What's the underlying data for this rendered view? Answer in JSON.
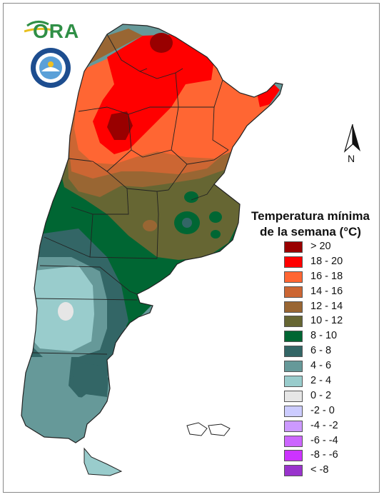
{
  "map": {
    "title_line1": "Temperatura mínima",
    "title_line2": "de la semana (°C)",
    "north_label": "N",
    "logos": {
      "ora_text": "ORA"
    },
    "legend": [
      {
        "label": "> 20",
        "color": "#990000"
      },
      {
        "label": "18 - 20",
        "color": "#ff0000"
      },
      {
        "label": "16 - 18",
        "color": "#ff6633"
      },
      {
        "label": "14 - 16",
        "color": "#cc6633"
      },
      {
        "label": "12 - 14",
        "color": "#996633"
      },
      {
        "label": "10 - 12",
        "color": "#666633"
      },
      {
        "label": "8 - 10",
        "color": "#006633"
      },
      {
        "label": "6 - 8",
        "color": "#336666"
      },
      {
        "label": "4 - 6",
        "color": "#669999"
      },
      {
        "label": "2 - 4",
        "color": "#99cccc"
      },
      {
        "label": "0 - 2",
        "color": "#e6e6e6"
      },
      {
        "label": "-2 - 0",
        "color": "#ccccff"
      },
      {
        "label": "-4 - -2",
        "color": "#cc99ff"
      },
      {
        "label": "-6 - -4",
        "color": "#cc66ff"
      },
      {
        "label": "-8 - -6",
        "color": "#cc33ff"
      },
      {
        "label": "< -8",
        "color": "#9933cc"
      }
    ]
  }
}
